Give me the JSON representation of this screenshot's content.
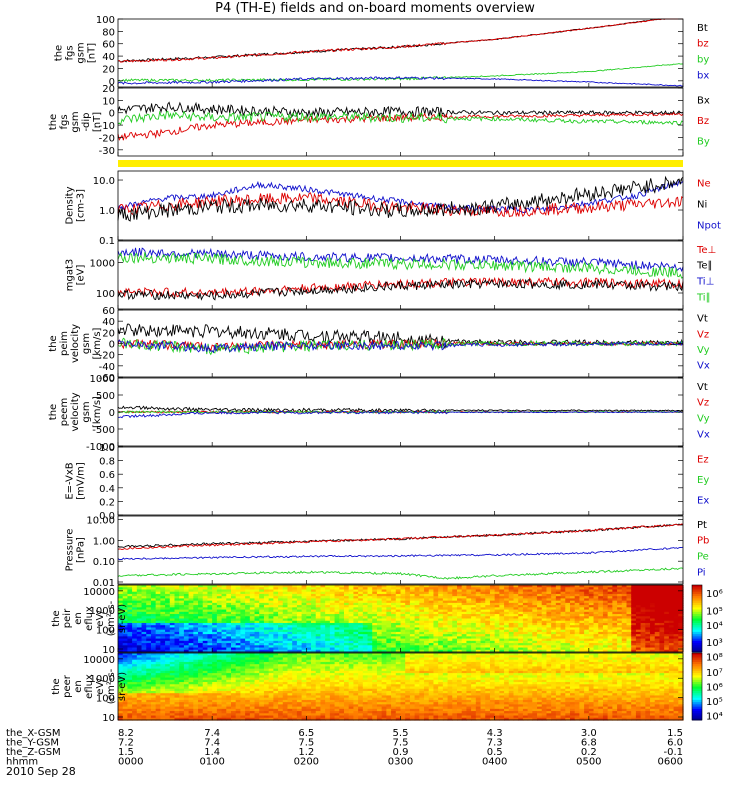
{
  "title": "P4 (TH-E) fields and on-board moments overview",
  "date": "2010 Sep 28",
  "colors": {
    "black": "#000000",
    "red": "#dd0000",
    "green": "#22cc22",
    "blue": "#1010cc",
    "yellow": "#ffee00"
  },
  "chart_data": [
    {
      "type": "line",
      "ylabel": [
        "the",
        "fgs",
        "gsm",
        "[nT]"
      ],
      "ylim": [
        -10,
        100
      ],
      "yticks": [
        {
          "v": 100,
          "t": "100"
        },
        {
          "v": 80,
          "t": "80"
        },
        {
          "v": 60,
          "t": "60"
        },
        {
          "v": 40,
          "t": "40"
        },
        {
          "v": 20,
          "t": "20"
        },
        {
          "v": 0,
          "t": "0"
        }
      ],
      "legend": [
        {
          "t": "Bt",
          "c": "black"
        },
        {
          "t": "bz",
          "c": "red"
        },
        {
          "t": "by",
          "c": "green"
        },
        {
          "t": "bx",
          "c": "blue"
        }
      ],
      "series": [
        {
          "name": "Bt",
          "color": "black",
          "x": [
            0,
            0.1,
            0.2,
            0.3,
            0.4,
            0.5,
            0.6
          ],
          "y": [
            32,
            38,
            47,
            55,
            67,
            85,
            105
          ],
          "noise": 2
        },
        {
          "name": "bz",
          "color": "red",
          "x": [
            0,
            0.1,
            0.2,
            0.3,
            0.4,
            0.5,
            0.6
          ],
          "y": [
            31,
            37,
            47,
            55,
            67,
            85,
            104
          ],
          "noise": 2
        },
        {
          "name": "by",
          "color": "green",
          "x": [
            0,
            0.1,
            0.2,
            0.3,
            0.4,
            0.5,
            0.6
          ],
          "y": [
            1,
            1,
            2,
            3,
            8,
            15,
            28
          ],
          "noise": 2
        },
        {
          "name": "bx",
          "color": "blue",
          "x": [
            0,
            0.1,
            0.2,
            0.3,
            0.4,
            0.5,
            0.6
          ],
          "y": [
            -4,
            -2,
            3,
            5,
            3,
            -2,
            -8
          ],
          "noise": 2
        }
      ]
    },
    {
      "type": "line",
      "ylabel": [
        "the",
        "fgs",
        "gsm",
        "-dip",
        "[nT]"
      ],
      "ylim": [
        -35,
        20
      ],
      "yticks": [
        {
          "v": 20,
          "t": "20"
        },
        {
          "v": 10,
          "t": "10"
        },
        {
          "v": 0,
          "t": "0"
        },
        {
          "v": -10,
          "t": "-10"
        },
        {
          "v": -20,
          "t": "-20"
        },
        {
          "v": -30,
          "t": "-30"
        }
      ],
      "legend": [
        {
          "t": "Bx",
          "c": "black"
        },
        {
          "t": "Bz",
          "c": "red"
        },
        {
          "t": "By",
          "c": "green"
        }
      ],
      "series": [
        {
          "name": "Bx",
          "color": "black",
          "x": [
            0,
            0.05,
            0.1,
            0.2,
            0.3,
            0.4,
            0.5,
            0.6
          ],
          "y": [
            2,
            5,
            3,
            0,
            1,
            0,
            0,
            0
          ],
          "noise": 4
        },
        {
          "name": "Bz",
          "color": "red",
          "x": [
            0,
            0.05,
            0.1,
            0.2,
            0.3,
            0.4,
            0.5,
            0.6
          ],
          "y": [
            -20,
            -16,
            -10,
            -6,
            -4,
            -3,
            -2,
            -1
          ],
          "noise": 3
        },
        {
          "name": "By",
          "color": "green",
          "x": [
            0,
            0.05,
            0.1,
            0.2,
            0.3,
            0.4,
            0.5,
            0.6
          ],
          "y": [
            -6,
            -2,
            -4,
            -3,
            -4,
            -5,
            -7,
            -8
          ],
          "noise": 4
        }
      ]
    },
    {
      "type": "bar-flag",
      "note": "yellow data-quality bar"
    },
    {
      "type": "line",
      "log": true,
      "ylabel": [
        "Density",
        "[cm-3]"
      ],
      "ylim": [
        0.1,
        20
      ],
      "yticks": [
        {
          "v": 10,
          "t": "10.0"
        },
        {
          "v": 1,
          "t": "1.0"
        },
        {
          "v": 0.1,
          "t": "0.1"
        }
      ],
      "legend": [
        {
          "t": "Ne",
          "c": "red"
        },
        {
          "t": "Ni",
          "c": "black"
        },
        {
          "t": "Npot",
          "c": "blue"
        }
      ],
      "series": [
        {
          "name": "Npot",
          "color": "blue",
          "x": [
            0,
            0.05,
            0.1,
            0.13,
            0.15,
            0.2,
            0.25,
            0.35,
            0.45,
            0.55,
            0.6
          ],
          "y": [
            1.2,
            2.5,
            3,
            5,
            7,
            5,
            3,
            1.2,
            1,
            3,
            9
          ],
          "noise": 0.1
        },
        {
          "name": "Ne",
          "color": "red",
          "x": [
            0,
            0.1,
            0.2,
            0.3,
            0.4,
            0.5,
            0.6
          ],
          "y": [
            1.0,
            2.0,
            2.5,
            1.2,
            0.9,
            1.2,
            2.0
          ],
          "noise": 0.2
        },
        {
          "name": "Ni",
          "color": "black",
          "x": [
            0,
            0.1,
            0.2,
            0.3,
            0.4,
            0.5,
            0.6
          ],
          "y": [
            0.7,
            1.3,
            1.5,
            0.9,
            1.3,
            3.5,
            9
          ],
          "noise": 0.25
        }
      ]
    },
    {
      "type": "line",
      "log": true,
      "ylabel": [
        "mgat3",
        "[eV]"
      ],
      "ylim": [
        30,
        5000
      ],
      "yticks": [
        {
          "v": 1000,
          "t": "1000"
        },
        {
          "v": 100,
          "t": "100"
        }
      ],
      "legend": [
        {
          "t": "Te⊥",
          "c": "red"
        },
        {
          "t": "Te∥",
          "c": "black"
        },
        {
          "t": "Ti⊥",
          "c": "blue"
        },
        {
          "t": "Ti∥",
          "c": "green"
        }
      ],
      "series": [
        {
          "name": "Ti⊥",
          "color": "blue",
          "x": [
            0,
            0.1,
            0.2,
            0.3,
            0.4,
            0.5,
            0.6
          ],
          "y": [
            2200,
            1900,
            1500,
            1400,
            1200,
            1000,
            700
          ],
          "noise": 0.15
        },
        {
          "name": "Ti∥",
          "color": "green",
          "x": [
            0,
            0.1,
            0.2,
            0.3,
            0.4,
            0.5,
            0.6
          ],
          "y": [
            1500,
            1300,
            1000,
            900,
            800,
            650,
            450
          ],
          "noise": 0.18
        },
        {
          "name": "Te⊥",
          "color": "red",
          "x": [
            0,
            0.1,
            0.2,
            0.3,
            0.4,
            0.5,
            0.6
          ],
          "y": [
            110,
            100,
            140,
            200,
            230,
            220,
            200
          ],
          "noise": 0.15
        },
        {
          "name": "Te∥",
          "color": "black",
          "x": [
            0,
            0.1,
            0.2,
            0.3,
            0.4,
            0.5,
            0.6
          ],
          "y": [
            90,
            80,
            120,
            170,
            200,
            190,
            160
          ],
          "noise": 0.15
        }
      ]
    },
    {
      "type": "line",
      "ylabel": [
        "the",
        "peim",
        "velocity",
        "gsm",
        "[km/s]"
      ],
      "ylim": [
        -60,
        60
      ],
      "yticks": [
        {
          "v": 60,
          "t": "60"
        },
        {
          "v": 40,
          "t": "40"
        },
        {
          "v": 20,
          "t": "20"
        },
        {
          "v": 0,
          "t": "0"
        },
        {
          "v": -20,
          "t": "-20"
        },
        {
          "v": -40,
          "t": "-40"
        },
        {
          "v": -60,
          "t": "-60"
        }
      ],
      "legend": [
        {
          "t": "Vt",
          "c": "black"
        },
        {
          "t": "Vz",
          "c": "red"
        },
        {
          "t": "Vy",
          "c": "green"
        },
        {
          "t": "Vx",
          "c": "blue"
        }
      ],
      "series": [
        {
          "name": "Vt",
          "color": "black",
          "x": [
            0,
            0.1,
            0.2,
            0.3,
            0.35,
            0.4,
            0.6
          ],
          "y": [
            25,
            22,
            15,
            10,
            3,
            2,
            1
          ],
          "noise": 12
        },
        {
          "name": "Vz",
          "color": "red",
          "x": [
            0,
            0.1,
            0.2,
            0.3,
            0.4,
            0.6
          ],
          "y": [
            0,
            -5,
            -3,
            -1,
            0,
            0
          ],
          "noise": 8
        },
        {
          "name": "Vy",
          "color": "green",
          "x": [
            0,
            0.1,
            0.2,
            0.3,
            0.4,
            0.6
          ],
          "y": [
            0,
            -10,
            -5,
            -2,
            0,
            0
          ],
          "noise": 10
        },
        {
          "name": "Vx",
          "color": "blue",
          "x": [
            0,
            0.1,
            0.2,
            0.3,
            0.4,
            0.6
          ],
          "y": [
            0,
            -8,
            -3,
            -4,
            -2,
            0
          ],
          "noise": 8
        }
      ]
    },
    {
      "type": "line",
      "ylabel": [
        "the",
        "peem",
        "velocity",
        "gsm",
        "[km/s]"
      ],
      "ylim": [
        -1000,
        1000
      ],
      "yticks": [
        {
          "v": 1000,
          "t": "1000"
        },
        {
          "v": 500,
          "t": "500"
        },
        {
          "v": 0,
          "t": "0"
        },
        {
          "v": -500,
          "t": "-500"
        },
        {
          "v": -1000,
          "t": "-1000"
        }
      ],
      "legend": [
        {
          "t": "Vt",
          "c": "black"
        },
        {
          "t": "Vz",
          "c": "red"
        },
        {
          "t": "Vy",
          "c": "green"
        },
        {
          "t": "Vx",
          "c": "blue"
        }
      ],
      "series": [
        {
          "name": "Vt",
          "color": "black",
          "x": [
            0,
            0.05,
            0.1,
            0.3,
            0.6
          ],
          "y": [
            150,
            100,
            60,
            50,
            40
          ],
          "noise": 50
        },
        {
          "name": "Vz",
          "color": "red",
          "x": [
            0,
            0.6
          ],
          "y": [
            0,
            0
          ],
          "noise": 30
        },
        {
          "name": "Vy",
          "color": "green",
          "x": [
            0,
            0.6
          ],
          "y": [
            0,
            0
          ],
          "noise": 30
        },
        {
          "name": "Vx",
          "color": "blue",
          "x": [
            0,
            0.05,
            0.1,
            0.6
          ],
          "y": [
            -150,
            -80,
            -20,
            0
          ],
          "noise": 40
        }
      ]
    },
    {
      "type": "line",
      "ylabel": [
        "E=-VxB",
        "[mV/m]"
      ],
      "ylim": [
        0,
        1
      ],
      "yticks": [
        {
          "v": 1,
          "t": "1.0"
        },
        {
          "v": 0.8,
          "t": "0.8"
        },
        {
          "v": 0.6,
          "t": "0.6"
        },
        {
          "v": 0.4,
          "t": "0.4"
        },
        {
          "v": 0.2,
          "t": "0.2"
        },
        {
          "v": 0,
          "t": "0.0"
        }
      ],
      "legend": [
        {
          "t": "Ez",
          "c": "red"
        },
        {
          "t": "Ey",
          "c": "green"
        },
        {
          "t": "Ex",
          "c": "blue"
        }
      ],
      "series": []
    },
    {
      "type": "line",
      "log": true,
      "ylabel": [
        "Pressure",
        "[nPa]"
      ],
      "ylim": [
        0.008,
        15
      ],
      "yticks": [
        {
          "v": 10,
          "t": "10.00"
        },
        {
          "v": 1,
          "t": "1.00"
        },
        {
          "v": 0.1,
          "t": "0.10"
        },
        {
          "v": 0.01,
          "t": "0.01"
        }
      ],
      "legend": [
        {
          "t": "Pt",
          "c": "black"
        },
        {
          "t": "Pb",
          "c": "red"
        },
        {
          "t": "Pe",
          "c": "green"
        },
        {
          "t": "Pi",
          "c": "blue"
        }
      ],
      "series": [
        {
          "name": "Pt",
          "color": "black",
          "x": [
            0,
            0.1,
            0.2,
            0.3,
            0.4,
            0.5,
            0.6
          ],
          "y": [
            0.5,
            0.7,
            0.9,
            1.2,
            1.8,
            3.0,
            6.0
          ],
          "noise": 0.05
        },
        {
          "name": "Pb",
          "color": "red",
          "x": [
            0,
            0.1,
            0.2,
            0.3,
            0.4,
            0.5,
            0.6
          ],
          "y": [
            0.4,
            0.6,
            0.85,
            1.2,
            1.8,
            3.0,
            6.0
          ],
          "noise": 0.05
        },
        {
          "name": "Pi",
          "color": "blue",
          "x": [
            0,
            0.1,
            0.2,
            0.3,
            0.4,
            0.5,
            0.6
          ],
          "y": [
            0.13,
            0.15,
            0.17,
            0.18,
            0.2,
            0.25,
            0.45
          ],
          "noise": 0.04
        },
        {
          "name": "Pe",
          "color": "green",
          "x": [
            0,
            0.1,
            0.2,
            0.3,
            0.35,
            0.4,
            0.5,
            0.6
          ],
          "y": [
            0.02,
            0.025,
            0.03,
            0.025,
            0.015,
            0.02,
            0.03,
            0.045
          ],
          "noise": 0.05
        }
      ]
    },
    {
      "type": "heatmap",
      "ylabel": [
        "the",
        "peir",
        "en",
        "eflux",
        "eV/",
        "(cm²-s-",
        "sr-eV)"
      ],
      "ylim": [
        7,
        20000
      ],
      "log": true,
      "yticks": [
        {
          "v": 10000,
          "t": "10000"
        },
        {
          "v": 1000,
          "t": "1000"
        },
        {
          "v": 100,
          "t": "100"
        },
        {
          "v": 10,
          "t": "10"
        }
      ],
      "cbar": [
        {
          "t": "10⁶",
          "p": 0.12
        },
        {
          "t": "10⁵",
          "p": 0.38
        },
        {
          "t": "10⁴",
          "p": 0.6
        },
        {
          "t": "10³",
          "p": 0.85
        }
      ],
      "kind": "ion"
    },
    {
      "type": "heatmap",
      "ylabel": [
        "the",
        "peer",
        "en",
        "eflux",
        "eV/",
        "(cm²-s-",
        "sr-eV)"
      ],
      "ylim": [
        7,
        20000
      ],
      "log": true,
      "yticks": [
        {
          "v": 10000,
          "t": "10000"
        },
        {
          "v": 1000,
          "t": "1000"
        },
        {
          "v": 100,
          "t": "100"
        },
        {
          "v": 10,
          "t": "10"
        }
      ],
      "cbar": [
        {
          "t": "10⁸",
          "p": 0.05
        },
        {
          "t": "10⁷",
          "p": 0.28
        },
        {
          "t": "10⁶",
          "p": 0.5
        },
        {
          "t": "10⁵",
          "p": 0.72
        },
        {
          "t": "10⁴",
          "p": 0.93
        }
      ],
      "kind": "electron"
    }
  ],
  "orbit": {
    "labels": [
      "the_X-GSM",
      "the_Y-GSM",
      "the_Z-GSM",
      "hhmm"
    ],
    "ticks": [
      {
        "v": [
          "8.2",
          "7.2",
          "1.5",
          "0000"
        ]
      },
      {
        "v": [
          "7.4",
          "7.4",
          "1.4",
          "0100"
        ]
      },
      {
        "v": [
          "6.5",
          "7.5",
          "1.2",
          "0200"
        ]
      },
      {
        "v": [
          "5.5",
          "7.5",
          "0.9",
          "0300"
        ]
      },
      {
        "v": [
          "4.3",
          "7.3",
          "0.5",
          "0400"
        ]
      },
      {
        "v": [
          "3.0",
          "6.8",
          "0.2",
          "0500"
        ]
      },
      {
        "v": [
          "1.5",
          "6.0",
          "-0.1",
          "0600"
        ]
      }
    ]
  }
}
